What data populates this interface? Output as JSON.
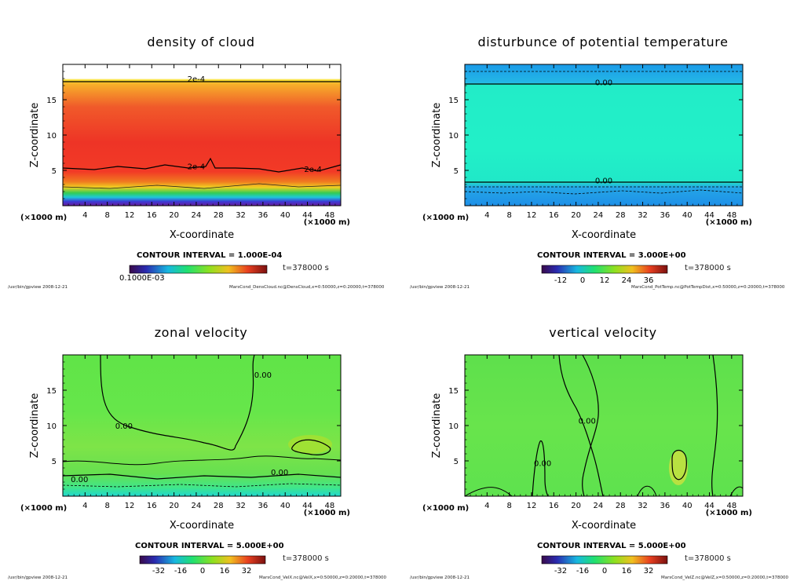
{
  "chart_data": [
    {
      "id": "cloud",
      "type": "heatmap",
      "title": "density of cloud",
      "xlabel": "X-coordinate",
      "ylabel": "Z-coordinate",
      "x_unit": "(×1000 m)",
      "xlim": [
        0,
        50
      ],
      "ylim": [
        0,
        20
      ],
      "xticks": [
        4,
        8,
        12,
        16,
        20,
        24,
        28,
        32,
        36,
        40,
        44,
        48
      ],
      "yticks": [
        5,
        10,
        15
      ],
      "contour_interval": "CONTOUR INTERVAL = 1.000E-04",
      "time_label": "t=378000 s",
      "colorbar_label": "0.1000E-03",
      "contour_labels": [
        {
          "text": "2e-4",
          "x": 24,
          "z": 17.8
        },
        {
          "text": "2e-4",
          "x": 24,
          "z": 5.4
        },
        {
          "text": "2e-4",
          "x": 45,
          "z": 5.0
        }
      ],
      "footer_left": "/usr/bin/gpview   2008-12-21",
      "footer_right": "MarsCond_DensCloud.nc@DensCloud,x=0:50000,z=0:20000,t=378000"
    },
    {
      "id": "pottemp",
      "type": "heatmap",
      "title": "disturbunce of potential temperature",
      "xlabel": "X-coordinate",
      "ylabel": "Z-coordinate",
      "x_unit": "(×1000 m)",
      "xlim": [
        0,
        50
      ],
      "ylim": [
        0,
        20
      ],
      "xticks": [
        4,
        8,
        12,
        16,
        20,
        24,
        28,
        32,
        36,
        40,
        44,
        48
      ],
      "yticks": [
        5,
        10,
        15
      ],
      "contour_interval": "CONTOUR INTERVAL = 3.000E+00",
      "time_label": "t=378000 s",
      "colorbar_ticks": [
        "-12",
        "0",
        "12",
        "24",
        "36"
      ],
      "contour_labels": [
        {
          "text": "0.00",
          "x": 25,
          "z": 17.3
        },
        {
          "text": "0.00",
          "x": 25,
          "z": 3.4
        }
      ],
      "footer_left": "/usr/bin/gpview   2008-12-21",
      "footer_right": "MarsCond_PotTemp.nc@PotTempDist,x=0:50000,z=0:20000,t=378000"
    },
    {
      "id": "velx",
      "type": "heatmap",
      "title": "zonal velocity",
      "xlabel": "X-coordinate",
      "ylabel": "Z-coordinate",
      "x_unit": "(×1000 m)",
      "xlim": [
        0,
        50
      ],
      "ylim": [
        0,
        20
      ],
      "xticks": [
        4,
        8,
        12,
        16,
        20,
        24,
        28,
        32,
        36,
        40,
        44,
        48
      ],
      "yticks": [
        5,
        10,
        15
      ],
      "contour_interval": "CONTOUR INTERVAL = 5.000E+00",
      "time_label": "t=378000 s",
      "colorbar_ticks": [
        "-32",
        "-16",
        "0",
        "16",
        "32"
      ],
      "contour_labels": [
        {
          "text": "0.00",
          "x": 36,
          "z": 17.0
        },
        {
          "text": "0.00",
          "x": 11,
          "z": 9.8
        },
        {
          "text": "0.00",
          "x": 3,
          "z": 2.2
        },
        {
          "text": "0.00",
          "x": 39,
          "z": 3.2
        }
      ],
      "footer_left": "/usr/bin/gpview   2008-12-21",
      "footer_right": "MarsCond_VelX.nc@VelX,x=0:50000,z=0:20000,t=378000"
    },
    {
      "id": "velz",
      "type": "heatmap",
      "title": "vertical velocity",
      "xlabel": "X-coordinate",
      "ylabel": "Z-coordinate",
      "x_unit": "(×1000 m)",
      "xlim": [
        0,
        50
      ],
      "ylim": [
        0,
        20
      ],
      "xticks": [
        4,
        8,
        12,
        16,
        20,
        24,
        28,
        32,
        36,
        40,
        44,
        48
      ],
      "yticks": [
        5,
        10,
        15
      ],
      "contour_interval": "CONTOUR INTERVAL = 5.000E+00",
      "time_label": "t=378000 s",
      "colorbar_ticks": [
        "-32",
        "-16",
        "0",
        "16",
        "32"
      ],
      "contour_labels": [
        {
          "text": "0.00",
          "x": 22,
          "z": 10.5
        },
        {
          "text": "0.00",
          "x": 14,
          "z": 4.5
        }
      ],
      "footer_left": "/usr/bin/gpview   2008-12-21",
      "footer_right": "MarsCond_VelZ.nc@VelZ,x=0:50000,z=0:20000,t=378000"
    }
  ]
}
